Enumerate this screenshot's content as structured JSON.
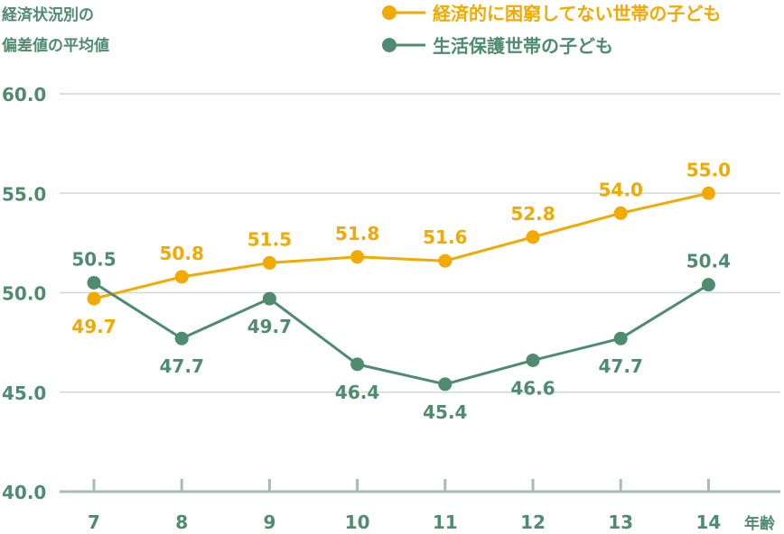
{
  "chart_data": {
    "type": "line",
    "ylabel": [
      "経済状況別の",
      "偏差値の平均値"
    ],
    "xlabel": "年齢",
    "categories": [
      "7",
      "8",
      "9",
      "10",
      "11",
      "12",
      "13",
      "14"
    ],
    "ylim": [
      40,
      60
    ],
    "yticks": [
      "40.0",
      "45.0",
      "50.0",
      "55.0",
      "60.0"
    ],
    "grid": true,
    "legend_position": "top-right",
    "series": [
      {
        "name": "経済的に困窮してない世帯の子ども",
        "color": "#f2a900",
        "values": [
          49.7,
          50.8,
          51.5,
          51.8,
          51.6,
          52.8,
          54.0,
          55.0
        ],
        "value_labels": [
          "49.7",
          "50.8",
          "51.5",
          "51.8",
          "51.6",
          "52.8",
          "54.0",
          "55.0"
        ]
      },
      {
        "name": "生活保護世帯の子ども",
        "color": "#4f8b6f",
        "values": [
          50.5,
          47.7,
          49.7,
          46.4,
          45.4,
          46.6,
          47.7,
          50.4
        ],
        "value_labels": [
          "50.5",
          "47.7",
          "49.7",
          "46.4",
          "45.4",
          "46.6",
          "47.7",
          "50.4"
        ]
      }
    ]
  }
}
